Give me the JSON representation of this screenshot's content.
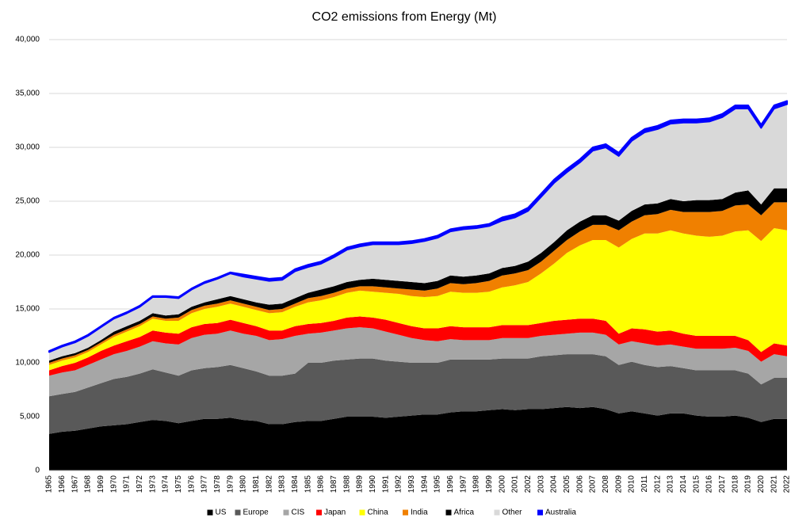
{
  "chart_data": {
    "type": "stacked_area",
    "title": "CO2 emissions from Energy (Mt)",
    "x": [
      1965,
      1966,
      1967,
      1968,
      1969,
      1970,
      1971,
      1972,
      1973,
      1974,
      1975,
      1976,
      1977,
      1978,
      1979,
      1980,
      1981,
      1982,
      1983,
      1984,
      1985,
      1986,
      1987,
      1988,
      1989,
      1990,
      1991,
      1992,
      1993,
      1994,
      1995,
      1996,
      1997,
      1998,
      1999,
      2000,
      2001,
      2002,
      2003,
      2004,
      2005,
      2006,
      2007,
      2008,
      2009,
      2010,
      2011,
      2012,
      2013,
      2014,
      2015,
      2016,
      2017,
      2018,
      2019,
      2020,
      2021,
      2022
    ],
    "ylim": [
      0,
      40000
    ],
    "yticks": [
      0,
      {
        "value": 5000,
        "label": "5,000"
      },
      {
        "value": 10000,
        "label": "10,000"
      },
      {
        "value": 15000,
        "label": "15,000"
      },
      {
        "value": 20000,
        "label": "20,000"
      },
      {
        "value": 25000,
        "label": "25,000"
      },
      {
        "value": 30000,
        "label": "30,000"
      },
      {
        "value": 35000,
        "label": "35,000"
      },
      {
        "value": 40000,
        "label": "40,000"
      }
    ],
    "grid": true,
    "legend": "bottom",
    "series": [
      {
        "name": "US",
        "color": "#000000",
        "values": [
          3400,
          3600,
          3700,
          3900,
          4100,
          4200,
          4300,
          4500,
          4700,
          4600,
          4400,
          4600,
          4800,
          4800,
          4900,
          4700,
          4600,
          4300,
          4300,
          4500,
          4600,
          4600,
          4800,
          5000,
          5000,
          5000,
          4900,
          5000,
          5100,
          5200,
          5200,
          5400,
          5500,
          5500,
          5600,
          5700,
          5600,
          5700,
          5700,
          5800,
          5900,
          5800,
          5900,
          5700,
          5300,
          5500,
          5300,
          5100,
          5300,
          5300,
          5100,
          5000,
          5000,
          5100,
          4900,
          4500,
          4800,
          4800
        ]
      },
      {
        "name": "Europe",
        "color": "#595959",
        "values": [
          3500,
          3500,
          3600,
          3800,
          4000,
          4300,
          4400,
          4500,
          4700,
          4500,
          4400,
          4700,
          4700,
          4800,
          4900,
          4800,
          4600,
          4500,
          4500,
          4500,
          5400,
          5400,
          5400,
          5300,
          5400,
          5400,
          5300,
          5100,
          4900,
          4800,
          4800,
          4900,
          4800,
          4800,
          4700,
          4700,
          4800,
          4700,
          4900,
          4900,
          4900,
          5000,
          4900,
          4900,
          4500,
          4600,
          4500,
          4500,
          4400,
          4200,
          4200,
          4300,
          4300,
          4200,
          4100,
          3500,
          3800,
          3800
        ]
      },
      {
        "name": "CIS",
        "color": "#a6a6a6",
        "values": [
          1900,
          2000,
          2000,
          2100,
          2200,
          2300,
          2400,
          2500,
          2600,
          2700,
          2900,
          3000,
          3100,
          3100,
          3200,
          3200,
          3300,
          3300,
          3400,
          3500,
          2700,
          2800,
          2800,
          2900,
          2900,
          2800,
          2700,
          2500,
          2300,
          2100,
          2000,
          1900,
          1800,
          1800,
          1800,
          1900,
          1900,
          1900,
          1900,
          1900,
          1900,
          2000,
          2000,
          2000,
          1900,
          1900,
          2000,
          2000,
          2000,
          2000,
          2000,
          2000,
          2000,
          2100,
          2100,
          2100,
          2200,
          2000
        ]
      },
      {
        "name": "Japan",
        "color": "#ff0000",
        "values": [
          500,
          600,
          700,
          700,
          800,
          800,
          900,
          900,
          1000,
          1000,
          1000,
          1000,
          1000,
          1000,
          1000,
          1000,
          900,
          900,
          800,
          900,
          900,
          900,
          900,
          1000,
          1000,
          1000,
          1100,
          1100,
          1100,
          1100,
          1200,
          1200,
          1200,
          1200,
          1200,
          1200,
          1200,
          1200,
          1200,
          1300,
          1300,
          1300,
          1300,
          1300,
          1000,
          1200,
          1300,
          1300,
          1300,
          1200,
          1200,
          1200,
          1200,
          1100,
          1000,
          900,
          1000,
          1000
        ]
      },
      {
        "name": "China",
        "color": "#ffff00",
        "values": [
          500,
          500,
          500,
          500,
          600,
          800,
          900,
          1000,
          1100,
          1100,
          1200,
          1300,
          1400,
          1500,
          1500,
          1500,
          1500,
          1600,
          1700,
          1800,
          2000,
          2100,
          2200,
          2300,
          2400,
          2400,
          2500,
          2700,
          2800,
          2900,
          3000,
          3200,
          3200,
          3200,
          3300,
          3500,
          3700,
          4000,
          4600,
          5300,
          6200,
          6800,
          7300,
          7500,
          8000,
          8300,
          8900,
          9100,
          9300,
          9300,
          9300,
          9200,
          9300,
          9700,
          10200,
          10300,
          10700,
          10700
        ]
      },
      {
        "name": "India",
        "color": "#f08000",
        "values": [
          200,
          200,
          200,
          200,
          200,
          200,
          200,
          200,
          200,
          200,
          300,
          300,
          300,
          300,
          300,
          300,
          300,
          300,
          300,
          300,
          400,
          400,
          400,
          400,
          400,
          500,
          500,
          500,
          600,
          600,
          700,
          800,
          800,
          900,
          1000,
          1100,
          1100,
          1100,
          1100,
          1200,
          1200,
          1300,
          1400,
          1400,
          1600,
          1600,
          1700,
          1800,
          1900,
          2000,
          2200,
          2300,
          2300,
          2400,
          2400,
          2400,
          2400,
          2600
        ]
      },
      {
        "name": "Africa",
        "color": "#000000",
        "values": [
          200,
          200,
          200,
          200,
          200,
          300,
          300,
          300,
          300,
          300,
          300,
          300,
          300,
          400,
          400,
          400,
          400,
          500,
          500,
          500,
          500,
          600,
          600,
          600,
          600,
          700,
          700,
          700,
          700,
          700,
          700,
          700,
          700,
          700,
          700,
          700,
          700,
          800,
          800,
          800,
          900,
          900,
          900,
          900,
          900,
          1000,
          1000,
          1000,
          1000,
          1000,
          1100,
          1100,
          1100,
          1200,
          1300,
          1000,
          1300,
          1300
        ]
      },
      {
        "name": "Other",
        "color": "#d9d9d9",
        "values": [
          800,
          900,
          1000,
          1100,
          1200,
          1200,
          1200,
          1300,
          1500,
          1700,
          1500,
          1600,
          1800,
          1900,
          2100,
          2100,
          2200,
          2200,
          2200,
          2500,
          2400,
          2400,
          2700,
          3000,
          3100,
          3200,
          3300,
          3400,
          3600,
          3900,
          4000,
          4100,
          4400,
          4400,
          4400,
          4400,
          4500,
          4700,
          5200,
          5500,
          5400,
          5500,
          6000,
          6300,
          6000,
          6500,
          6700,
          6900,
          7000,
          7300,
          7200,
          7300,
          7600,
          7800,
          7600,
          7100,
          7400,
          7800
        ]
      },
      {
        "name": "Australia",
        "color": "#0000ff",
        "values": [
          100,
          100,
          100,
          100,
          100,
          100,
          100,
          100,
          100,
          100,
          100,
          100,
          100,
          100,
          100,
          200,
          200,
          200,
          200,
          200,
          200,
          200,
          200,
          200,
          200,
          200,
          200,
          200,
          200,
          200,
          200,
          200,
          200,
          200,
          200,
          300,
          300,
          300,
          300,
          300,
          300,
          300,
          300,
          300,
          300,
          300,
          300,
          300,
          300,
          300,
          300,
          300,
          300,
          300,
          300,
          300,
          300,
          300
        ]
      }
    ]
  }
}
